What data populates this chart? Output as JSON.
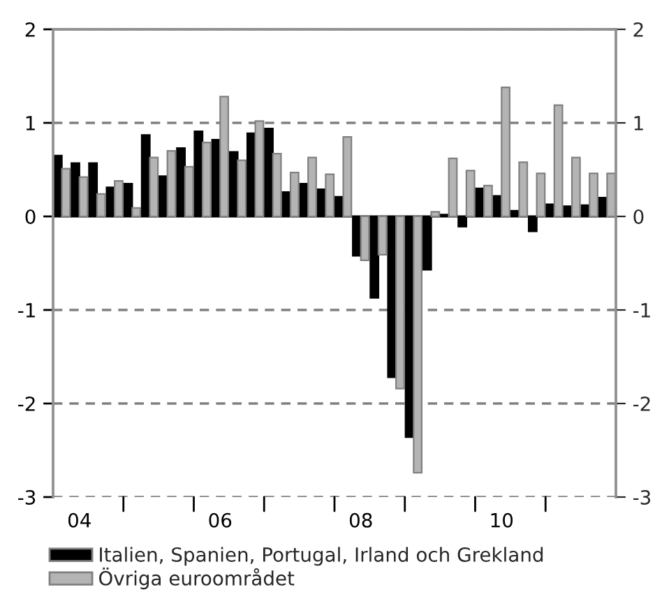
{
  "chart_data": {
    "type": "bar",
    "categories": [
      null,
      "04",
      null,
      null,
      null,
      null,
      null,
      null,
      null,
      "06",
      null,
      null,
      null,
      null,
      null,
      null,
      null,
      "08",
      null,
      null,
      null,
      null,
      null,
      null,
      null,
      "10",
      null,
      null,
      null,
      null,
      null,
      null
    ],
    "series": [
      {
        "name": "Italien, Spanien, Portugal, Irland och Grekland",
        "color": "#000000",
        "values": [
          0.65,
          0.57,
          0.57,
          0.31,
          0.35,
          0.87,
          0.43,
          0.73,
          0.91,
          0.82,
          0.69,
          0.89,
          0.94,
          0.26,
          0.35,
          0.29,
          0.21,
          -0.42,
          -0.87,
          -1.72,
          -2.36,
          -0.57,
          0.02,
          -0.11,
          0.3,
          0.22,
          0.06,
          -0.16,
          0.13,
          0.11,
          0.12,
          0.2
        ]
      },
      {
        "name": "Övriga euroområdet",
        "color": "#b4b4b4",
        "values": [
          0.51,
          0.42,
          0.24,
          0.38,
          0.09,
          0.63,
          0.7,
          0.53,
          0.79,
          1.28,
          0.6,
          1.02,
          0.67,
          0.47,
          0.63,
          0.45,
          0.85,
          -0.47,
          -0.41,
          -1.84,
          -2.74,
          0.05,
          0.62,
          0.49,
          0.33,
          1.38,
          0.58,
          0.46,
          1.19,
          0.63,
          0.46,
          0.46
        ]
      }
    ],
    "ylim": [
      -3,
      2
    ],
    "yticks": [
      -3,
      -2,
      -1,
      0,
      1,
      2
    ],
    "y2lim": [
      -3,
      2
    ],
    "y2ticks": [
      -3,
      -2,
      -1,
      0,
      1,
      2
    ],
    "grid": "y",
    "legend": "bottom"
  }
}
